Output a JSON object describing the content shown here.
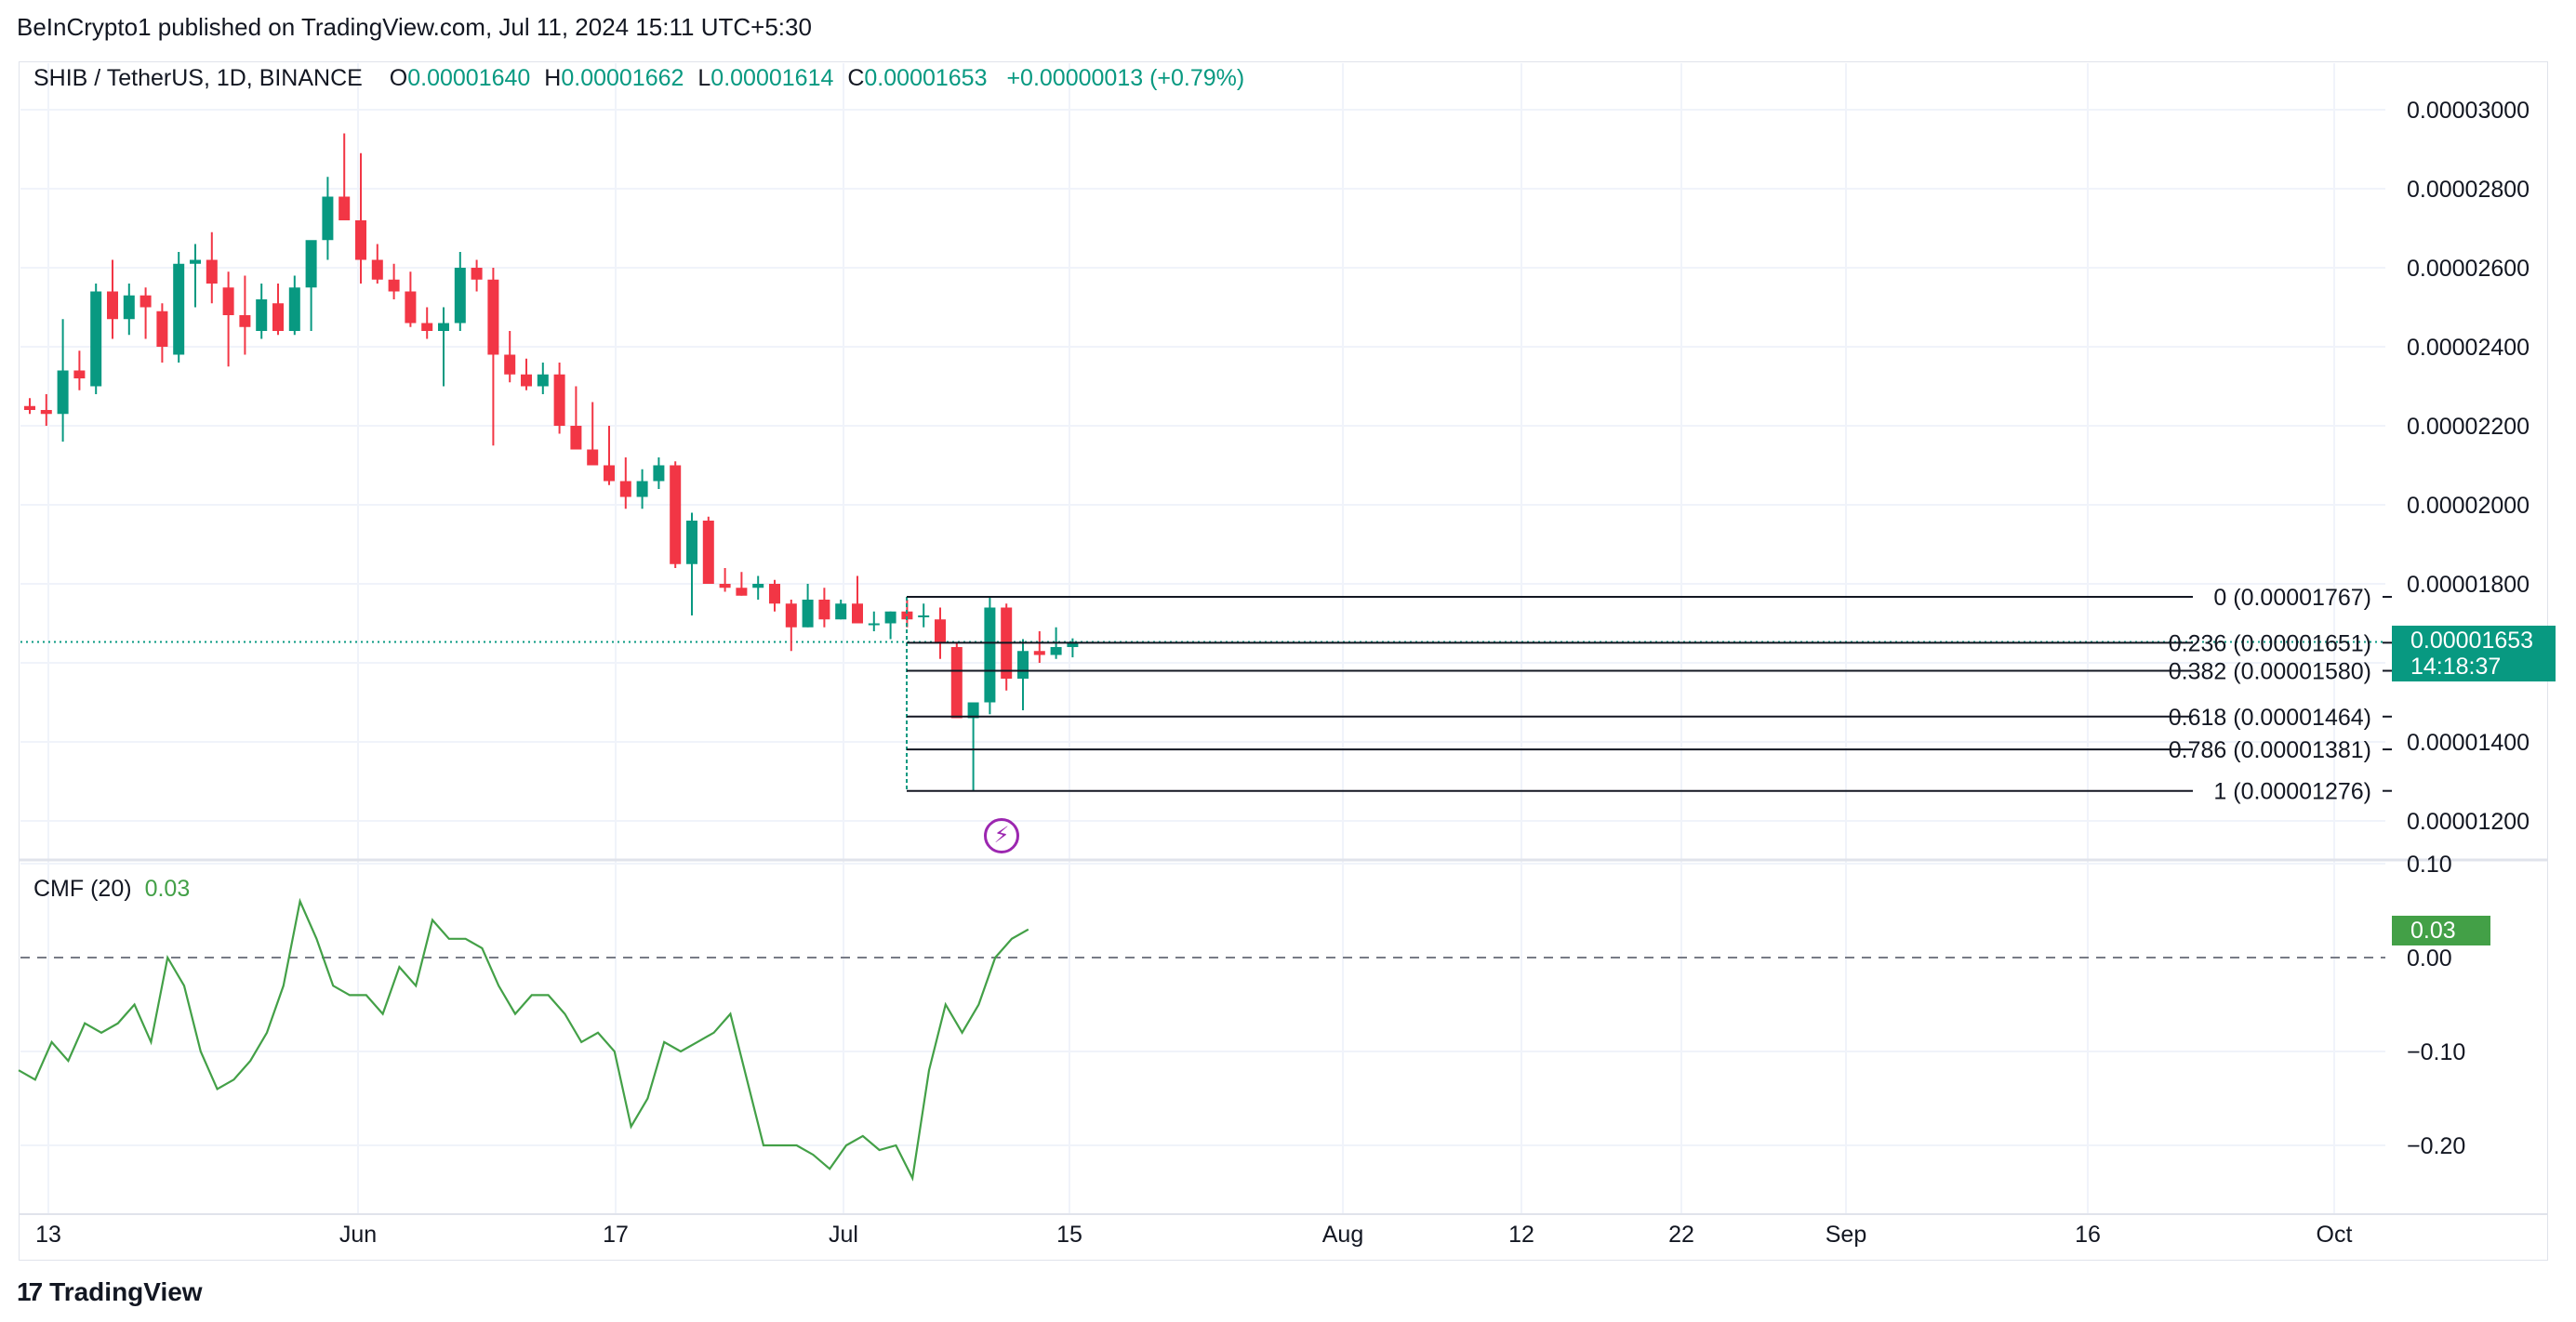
{
  "header": {
    "publisher": "BeInCrypto1 published on TradingView.com, Jul 11, 2024 15:11 UTC+5:30"
  },
  "legend": {
    "symbol": "SHIB / TetherUS, 1D, BINANCE",
    "o_label": "O",
    "o_value": "0.00001640",
    "h_label": "H",
    "h_value": "0.00001662",
    "l_label": "L",
    "l_value": "0.00001614",
    "c_label": "C",
    "c_value": "0.00001653",
    "change": "+0.00000013 (+0.79%)"
  },
  "price_label": {
    "value": "0.00001653",
    "countdown": "14:18:37"
  },
  "cmf": {
    "name": "CMF (20)",
    "value": "0.03",
    "tag": "0.03"
  },
  "branding": {
    "logo_text": "TradingView",
    "logo_mark": "17"
  },
  "colors": {
    "up": "#089981",
    "down": "#f23645",
    "cmf_line": "#43a047",
    "fib_line": "#131722",
    "grid": "#f0f3fa"
  },
  "chart_data": [
    {
      "type": "candlestick",
      "title": "SHIB / TetherUS, 1D, BINANCE",
      "yaxis": {
        "ticks": [
          "0.00003000",
          "0.00002800",
          "0.00002600",
          "0.00002400",
          "0.00002200",
          "0.00002000",
          "0.00001800",
          "0.00001400",
          "0.00001200"
        ],
        "ylim": [
          1.12e-05,
          3.2e-05
        ]
      },
      "xaxis": {
        "ticks": [
          "13",
          "Jun",
          "17",
          "Jul",
          "15",
          "Aug",
          "12",
          "22",
          "Sep",
          "16",
          "Oct"
        ]
      },
      "candles": [
        [
          2.25e-05,
          2.27e-05,
          2.23e-05,
          2.24e-05
        ],
        [
          2.24e-05,
          2.28e-05,
          2.2e-05,
          2.23e-05
        ],
        [
          2.23e-05,
          2.47e-05,
          2.16e-05,
          2.34e-05
        ],
        [
          2.34e-05,
          2.39e-05,
          2.29e-05,
          2.32e-05
        ],
        [
          2.3e-05,
          2.56e-05,
          2.28e-05,
          2.54e-05
        ],
        [
          2.54e-05,
          2.62e-05,
          2.42e-05,
          2.47e-05
        ],
        [
          2.47e-05,
          2.56e-05,
          2.43e-05,
          2.53e-05
        ],
        [
          2.53e-05,
          2.55e-05,
          2.42e-05,
          2.5e-05
        ],
        [
          2.49e-05,
          2.51e-05,
          2.36e-05,
          2.4e-05
        ],
        [
          2.38e-05,
          2.64e-05,
          2.36e-05,
          2.61e-05
        ],
        [
          2.61e-05,
          2.66e-05,
          2.5e-05,
          2.62e-05
        ],
        [
          2.62e-05,
          2.69e-05,
          2.51e-05,
          2.56e-05
        ],
        [
          2.55e-05,
          2.59e-05,
          2.35e-05,
          2.48e-05
        ],
        [
          2.48e-05,
          2.58e-05,
          2.38e-05,
          2.45e-05
        ],
        [
          2.44e-05,
          2.56e-05,
          2.42e-05,
          2.52e-05
        ],
        [
          2.51e-05,
          2.56e-05,
          2.43e-05,
          2.44e-05
        ],
        [
          2.44e-05,
          2.58e-05,
          2.43e-05,
          2.55e-05
        ],
        [
          2.55e-05,
          2.65e-05,
          2.44e-05,
          2.67e-05
        ],
        [
          2.67e-05,
          2.83e-05,
          2.62e-05,
          2.78e-05
        ],
        [
          2.78e-05,
          2.94e-05,
          2.72e-05,
          2.72e-05
        ],
        [
          2.72e-05,
          2.89e-05,
          2.56e-05,
          2.62e-05
        ],
        [
          2.62e-05,
          2.66e-05,
          2.56e-05,
          2.57e-05
        ],
        [
          2.57e-05,
          2.61e-05,
          2.52e-05,
          2.54e-05
        ],
        [
          2.54e-05,
          2.59e-05,
          2.45e-05,
          2.46e-05
        ],
        [
          2.46e-05,
          2.5e-05,
          2.42e-05,
          2.44e-05
        ],
        [
          2.44e-05,
          2.5e-05,
          2.3e-05,
          2.46e-05
        ],
        [
          2.46e-05,
          2.64e-05,
          2.44e-05,
          2.6e-05
        ],
        [
          2.6e-05,
          2.62e-05,
          2.54e-05,
          2.57e-05
        ],
        [
          2.57e-05,
          2.6e-05,
          2.15e-05,
          2.38e-05
        ],
        [
          2.38e-05,
          2.44e-05,
          2.31e-05,
          2.33e-05
        ],
        [
          2.33e-05,
          2.37e-05,
          2.29e-05,
          2.3e-05
        ],
        [
          2.3e-05,
          2.36e-05,
          2.28e-05,
          2.33e-05
        ],
        [
          2.33e-05,
          2.36e-05,
          2.18e-05,
          2.2e-05
        ],
        [
          2.2e-05,
          2.3e-05,
          2.14e-05,
          2.14e-05
        ],
        [
          2.14e-05,
          2.26e-05,
          2.1e-05,
          2.1e-05
        ],
        [
          2.1e-05,
          2.2e-05,
          2.05e-05,
          2.06e-05
        ],
        [
          2.06e-05,
          2.12e-05,
          1.99e-05,
          2.02e-05
        ],
        [
          2.02e-05,
          2.09e-05,
          1.99e-05,
          2.06e-05
        ],
        [
          2.06e-05,
          2.12e-05,
          2.04e-05,
          2.1e-05
        ],
        [
          2.1e-05,
          2.11e-05,
          1.84e-05,
          1.85e-05
        ],
        [
          1.85e-05,
          1.98e-05,
          1.72e-05,
          1.96e-05
        ],
        [
          1.96e-05,
          1.97e-05,
          1.8e-05,
          1.8e-05
        ],
        [
          1.8e-05,
          1.84e-05,
          1.78e-05,
          1.79e-05
        ],
        [
          1.79e-05,
          1.83e-05,
          1.77e-05,
          1.77e-05
        ],
        [
          1.79e-05,
          1.82e-05,
          1.76e-05,
          1.8e-05
        ],
        [
          1.8e-05,
          1.81e-05,
          1.73e-05,
          1.75e-05
        ],
        [
          1.75e-05,
          1.76e-05,
          1.63e-05,
          1.69e-05
        ],
        [
          1.69e-05,
          1.8e-05,
          1.69e-05,
          1.76e-05
        ],
        [
          1.76e-05,
          1.79e-05,
          1.69e-05,
          1.71e-05
        ],
        [
          1.71e-05,
          1.76e-05,
          1.71e-05,
          1.75e-05
        ],
        [
          1.75e-05,
          1.82e-05,
          1.7e-05,
          1.7e-05
        ],
        [
          1.7e-05,
          1.73e-05,
          1.68e-05,
          1.7e-05
        ],
        [
          1.7e-05,
          1.73e-05,
          1.66e-05,
          1.73e-05
        ],
        [
          1.73e-05,
          1.76e-05,
          1.69e-05,
          1.71e-05
        ],
        [
          1.72e-05,
          1.75e-05,
          1.69e-05,
          1.72e-05
        ],
        [
          1.71e-05,
          1.74e-05,
          1.61e-05,
          1.65e-05
        ],
        [
          1.64e-05,
          1.65e-05,
          1.46e-05,
          1.46e-05
        ],
        [
          1.46e-05,
          1.49e-05,
          1.276e-05,
          1.5e-05
        ],
        [
          1.5e-05,
          1.767e-05,
          1.47e-05,
          1.74e-05
        ],
        [
          1.74e-05,
          1.75e-05,
          1.53e-05,
          1.56e-05
        ],
        [
          1.56e-05,
          1.66e-05,
          1.48e-05,
          1.63e-05
        ],
        [
          1.63e-05,
          1.68e-05,
          1.6e-05,
          1.62e-05
        ],
        [
          1.62e-05,
          1.69e-05,
          1.61e-05,
          1.64e-05
        ],
        [
          1.64e-05,
          1.662e-05,
          1.614e-05,
          1.653e-05
        ]
      ],
      "fibonacci": [
        {
          "label": "0 (0.00001767)",
          "value": 1.767e-05
        },
        {
          "label": "0.236 (0.00001651)",
          "value": 1.651e-05
        },
        {
          "label": "0.382 (0.00001580)",
          "value": 1.58e-05
        },
        {
          "label": "0.618 (0.00001464)",
          "value": 1.464e-05
        },
        {
          "label": "0.786 (0.00001381)",
          "value": 1.381e-05
        },
        {
          "label": "1 (0.00001276)",
          "value": 1.276e-05
        }
      ]
    },
    {
      "type": "line",
      "title": "CMF (20)",
      "yaxis": {
        "ticks": [
          "0.10",
          "0.00",
          "−0.10",
          "−0.20"
        ],
        "ylim": [
          -0.255,
          0.1
        ]
      },
      "values": [
        -0.12,
        -0.13,
        -0.09,
        -0.11,
        -0.07,
        -0.08,
        -0.07,
        -0.05,
        -0.09,
        0.0,
        -0.03,
        -0.1,
        -0.14,
        -0.13,
        -0.11,
        -0.08,
        -0.03,
        0.06,
        0.02,
        -0.03,
        -0.04,
        -0.04,
        -0.06,
        -0.01,
        -0.03,
        0.04,
        0.02,
        0.02,
        0.01,
        -0.03,
        -0.06,
        -0.04,
        -0.04,
        -0.06,
        -0.09,
        -0.08,
        -0.1,
        -0.18,
        -0.15,
        -0.09,
        -0.1,
        -0.09,
        -0.08,
        -0.06,
        -0.13,
        -0.2,
        -0.2,
        -0.2,
        -0.21,
        -0.225,
        -0.2,
        -0.19,
        -0.205,
        -0.2,
        -0.235,
        -0.12,
        -0.05,
        -0.08,
        -0.05,
        0.0,
        0.02,
        0.03
      ]
    }
  ]
}
